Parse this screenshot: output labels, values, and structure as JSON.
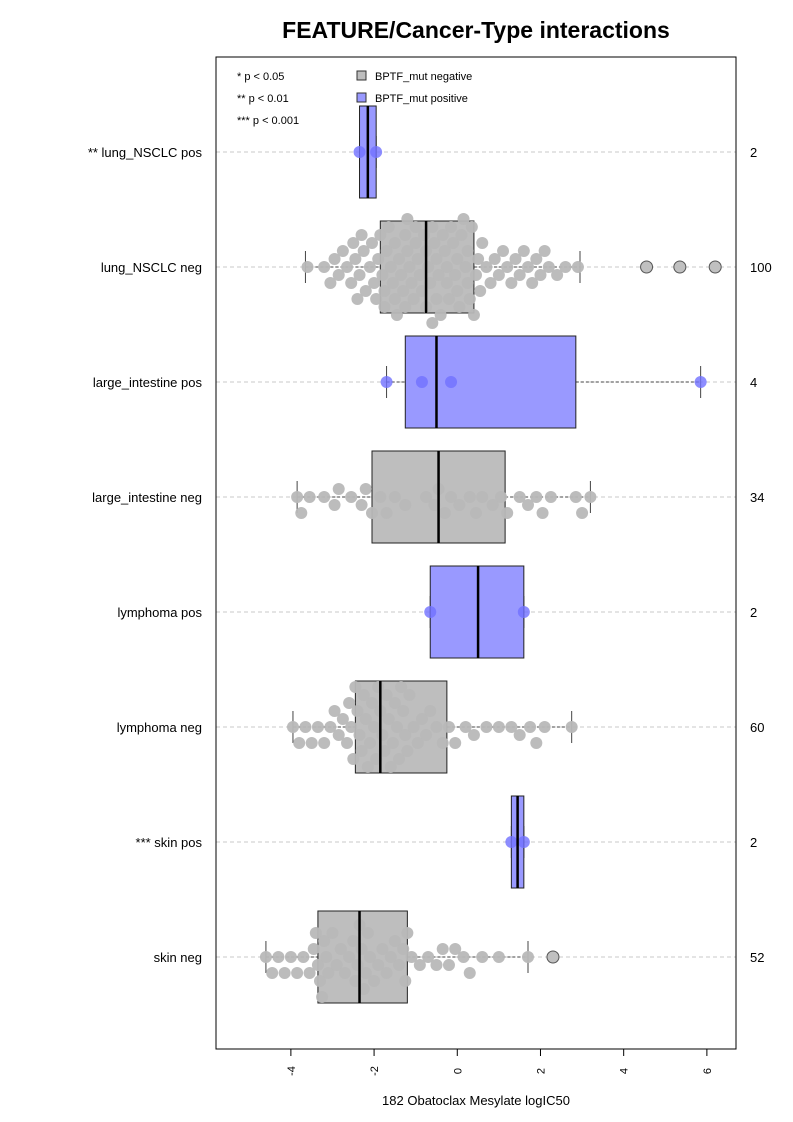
{
  "chart_data": {
    "type": "boxplot",
    "title": "FEATURE/Cancer-Type interactions",
    "xlabel": "182 Obatoclax Mesylate logIC50",
    "xlim": [
      -5.8,
      6.7
    ],
    "xticks": [
      -4,
      -2,
      0,
      2,
      4,
      6
    ],
    "xtick_labels": [
      "-4",
      "-2",
      "0",
      "2",
      "4",
      "6"
    ],
    "grid": "horizontal dashed lines at each group",
    "significance_legend": [
      "* p < 0.05",
      "** p < 0.01",
      "*** p < 0.001"
    ],
    "legend": {
      "position": "top-left",
      "entries": [
        {
          "label": "BPTF_mut negative",
          "color": "#bebebe"
        },
        {
          "label": "BPTF_mut positive",
          "color": "#9999ff"
        }
      ]
    },
    "colors": {
      "negative_box": "#bebebe",
      "positive_box": "#9999ff",
      "negative_point": "#b8b8b8",
      "positive_point": "#7070ff",
      "outlier_fill": "#c0c0c0",
      "grid": "#c8c8c8"
    },
    "groups": [
      {
        "label": "** lung_NSCLC pos",
        "status": "positive",
        "n": "2",
        "min": -2.35,
        "q1": -2.35,
        "median": -2.15,
        "q3": -1.95,
        "max": -1.95,
        "points": [
          -2.35,
          -1.95
        ],
        "outliers": []
      },
      {
        "label": "lung_NSCLC neg",
        "status": "negative",
        "n": "100",
        "min": -3.65,
        "q1": -1.85,
        "median": -0.75,
        "q3": 0.4,
        "max": 2.95,
        "points": [
          -3.6,
          -3.2,
          -3.05,
          -2.95,
          -2.85,
          -2.75,
          -2.65,
          -2.55,
          -2.5,
          -2.45,
          -2.4,
          -2.35,
          -2.3,
          -2.25,
          -2.2,
          -2.1,
          -2.05,
          -2.0,
          -1.95,
          -1.9,
          -1.85,
          -1.8,
          -1.75,
          -1.7,
          -1.65,
          -1.6,
          -1.55,
          -1.5,
          -1.45,
          -1.4,
          -1.35,
          -1.3,
          -1.25,
          -1.2,
          -1.15,
          -1.1,
          -1.05,
          -1.0,
          -0.95,
          -0.9,
          -0.85,
          -0.8,
          -0.75,
          -0.7,
          -0.65,
          -0.6,
          -0.55,
          -0.5,
          -0.45,
          -0.4,
          -0.35,
          -0.3,
          -0.25,
          -0.2,
          -0.15,
          -0.1,
          -0.05,
          0.0,
          0.05,
          0.1,
          0.15,
          0.2,
          0.25,
          0.3,
          0.35,
          0.4,
          0.45,
          0.5,
          0.55,
          0.6,
          0.7,
          0.8,
          0.9,
          1.0,
          1.1,
          1.2,
          1.3,
          1.4,
          1.5,
          1.6,
          1.7,
          1.8,
          1.9,
          2.0,
          2.1,
          2.2,
          2.4,
          2.6,
          2.9,
          -1.75,
          -1.25,
          -0.75,
          -0.25,
          0.25,
          -1.5,
          -1.0,
          -0.5,
          0.0,
          -1.2,
          -0.6
        ],
        "outliers": [
          4.55,
          5.35,
          6.2
        ]
      },
      {
        "label": "large_intestine pos",
        "status": "positive",
        "n": "4",
        "min": -1.7,
        "q1": -1.25,
        "median": -0.5,
        "q3": 2.85,
        "max": 5.85,
        "points": [
          -1.7,
          -0.85,
          -0.15,
          5.85
        ],
        "outliers": []
      },
      {
        "label": "large_intestine neg",
        "status": "negative",
        "n": "34",
        "min": -3.85,
        "q1": -2.05,
        "median": -0.45,
        "q3": 1.15,
        "max": 3.2,
        "points": [
          -3.85,
          -3.75,
          -3.55,
          -3.2,
          -2.95,
          -2.85,
          -2.55,
          -2.3,
          -2.2,
          -2.05,
          -1.85,
          -1.7,
          -1.5,
          -1.25,
          -0.75,
          -0.55,
          -0.45,
          -0.3,
          -0.15,
          0.05,
          0.3,
          0.45,
          0.6,
          0.85,
          1.05,
          1.2,
          1.5,
          1.7,
          1.9,
          2.05,
          2.25,
          2.85,
          3.0,
          3.2
        ],
        "outliers": []
      },
      {
        "label": "lymphoma pos",
        "status": "positive",
        "n": "2",
        "min": -0.65,
        "q1": -0.65,
        "median": 0.5,
        "q3": 1.6,
        "max": 1.6,
        "points": [
          -0.65,
          1.6
        ],
        "outliers": []
      },
      {
        "label": "lymphoma neg",
        "status": "negative",
        "n": "60",
        "min": -3.95,
        "q1": -2.45,
        "median": -1.85,
        "q3": -0.25,
        "max": 2.75,
        "points": [
          -3.95,
          -3.8,
          -3.65,
          -3.5,
          -3.35,
          -3.2,
          -3.05,
          -2.95,
          -2.85,
          -2.75,
          -2.65,
          -2.6,
          -2.55,
          -2.5,
          -2.45,
          -2.4,
          -2.35,
          -2.3,
          -2.25,
          -2.2,
          -2.15,
          -2.1,
          -2.05,
          -2.0,
          -1.95,
          -1.9,
          -1.85,
          -1.8,
          -1.75,
          -1.7,
          -1.65,
          -1.6,
          -1.55,
          -1.5,
          -1.45,
          -1.4,
          -1.35,
          -1.3,
          -1.25,
          -1.2,
          -1.15,
          -1.05,
          -0.95,
          -0.85,
          -0.75,
          -0.65,
          -0.5,
          -0.35,
          -0.2,
          -0.05,
          0.2,
          0.4,
          0.7,
          1.0,
          1.3,
          1.5,
          1.75,
          1.9,
          2.1,
          2.75
        ],
        "outliers": []
      },
      {
        "label": "*** skin pos",
        "status": "positive",
        "n": "2",
        "min": 1.3,
        "q1": 1.3,
        "median": 1.45,
        "q3": 1.6,
        "max": 1.6,
        "points": [
          1.3,
          1.6
        ],
        "outliers": []
      },
      {
        "label": "skin neg",
        "status": "negative",
        "n": "52",
        "min": -4.6,
        "q1": -3.35,
        "median": -2.35,
        "q3": -1.2,
        "max": 1.7,
        "points": [
          -4.6,
          -4.45,
          -4.3,
          -4.15,
          -4.0,
          -3.85,
          -3.7,
          -3.55,
          -3.45,
          -3.4,
          -3.35,
          -3.3,
          -3.25,
          -3.2,
          -3.15,
          -3.1,
          -3.0,
          -2.9,
          -2.8,
          -2.7,
          -2.6,
          -2.5,
          -2.45,
          -2.4,
          -2.35,
          -2.3,
          -2.25,
          -2.2,
          -2.15,
          -2.1,
          -2.0,
          -1.9,
          -1.8,
          -1.7,
          -1.6,
          -1.5,
          -1.4,
          -1.3,
          -1.25,
          -1.2,
          -1.1,
          -0.9,
          -0.7,
          -0.5,
          -0.35,
          -0.2,
          -0.05,
          0.15,
          0.3,
          0.6,
          1.0,
          1.7
        ],
        "outliers": [
          2.3
        ]
      }
    ]
  }
}
